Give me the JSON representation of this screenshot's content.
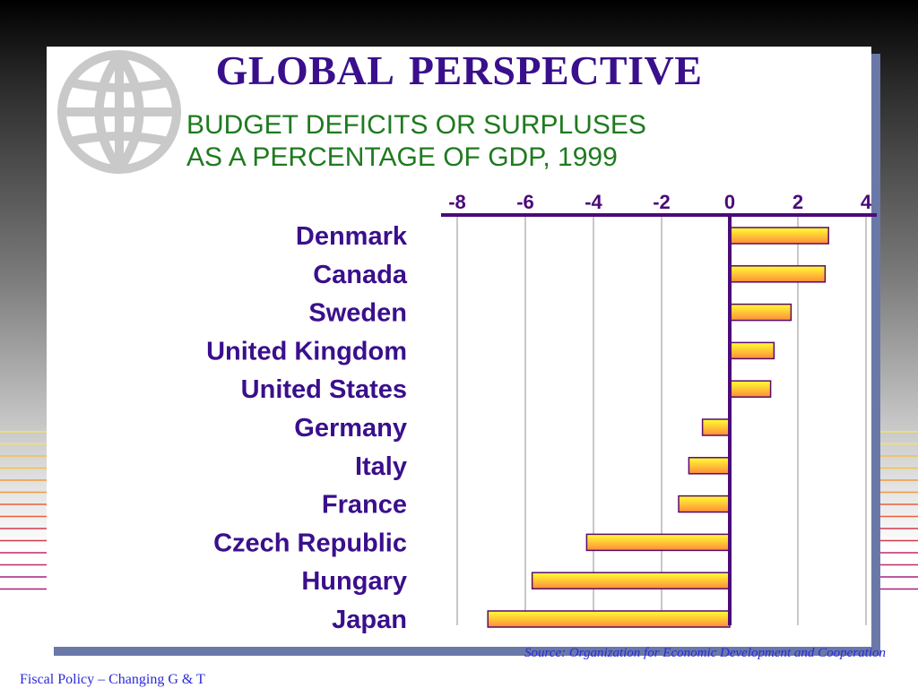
{
  "slide": {
    "title": "GLOBAL  PERSPECTIVE",
    "subtitle_line1": "BUDGET DEFICITS OR SURPLUSES",
    "subtitle_line2": "AS A PERCENTAGE OF GDP, 1999",
    "source": "Source: Organization for Economic Development and Cooperation",
    "footer": "Fiscal Policy – Changing G & T",
    "icon": "globe-icon"
  },
  "colors": {
    "title": "#3a0f8c",
    "subtitle": "#1f7a1f",
    "axis": "#4b0a7a",
    "category_labels": "#3a0f8c",
    "bar_fill_start": "#ffff33",
    "bar_fill_end": "#ff8c3a",
    "bar_stroke": "#5a0a6a",
    "source_text": "#2a2ad8"
  },
  "chart_data": {
    "type": "bar",
    "orientation": "horizontal",
    "title": "",
    "xlabel": "",
    "ylabel": "",
    "categories": [
      "Denmark",
      "Canada",
      "Sweden",
      "United Kingdom",
      "United States",
      "Germany",
      "Italy",
      "France",
      "Czech Republic",
      "Hungary",
      "Japan"
    ],
    "values": [
      2.9,
      2.8,
      1.8,
      1.3,
      1.2,
      -0.8,
      -1.2,
      -1.5,
      -4.2,
      -5.8,
      -7.1
    ],
    "xlim": [
      -8,
      4
    ],
    "xticks": [
      "-8",
      "-6",
      "-4",
      "-2",
      "0",
      "2",
      "4"
    ],
    "tick_values": [
      -8,
      -6,
      -4,
      -2,
      0,
      2,
      4
    ],
    "axis_position": "top",
    "grid": true
  }
}
